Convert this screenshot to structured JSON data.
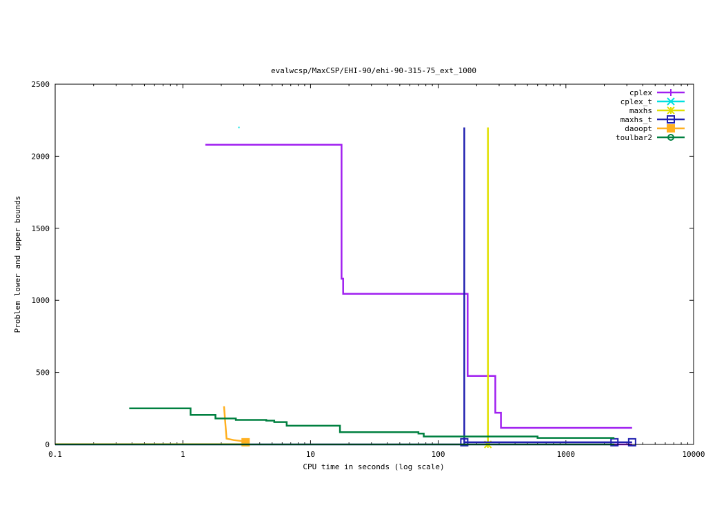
{
  "chart_data": {
    "type": "line",
    "title": "evalwcsp/MaxCSP/EHI-90/ehi-90-315-75_ext_1000",
    "xlabel": "CPU time in seconds (log scale)",
    "ylabel": "Problem lower and upper bounds",
    "xscale": "log",
    "xlim": [
      0.1,
      10000
    ],
    "ylim": [
      0,
      2500
    ],
    "xticks": [
      0.1,
      1,
      10,
      100,
      1000,
      10000
    ],
    "xtick_labels": [
      "0.1",
      "1",
      "10",
      "100",
      "1000",
      "10000"
    ],
    "yticks": [
      0,
      500,
      1000,
      1500,
      2000,
      2500
    ],
    "ytick_labels": [
      "0",
      "500",
      "1000",
      "1500",
      "2000",
      "2500"
    ],
    "grid": false,
    "legend_position": "top-right",
    "series": [
      {
        "name": "cplex",
        "color": "#a020f0",
        "marker": "plus",
        "points": [
          [
            1.5,
            2080
          ],
          [
            17.5,
            2080
          ],
          [
            17.5,
            1150
          ],
          [
            18,
            1150
          ],
          [
            18,
            1045
          ],
          [
            170,
            1045
          ],
          [
            170,
            475
          ],
          [
            280,
            475
          ],
          [
            280,
            220
          ],
          [
            310,
            220
          ],
          [
            310,
            115
          ],
          [
            3300,
            115
          ]
        ],
        "lower": [
          [
            0.1,
            0
          ],
          [
            3300,
            0
          ]
        ],
        "markers": []
      },
      {
        "name": "cplex_t",
        "color": "#00e0e0",
        "marker": "x",
        "points": [
          [
            2.75,
            2200
          ]
        ],
        "lower": [],
        "markers": []
      },
      {
        "name": "maxhs",
        "color": "#e0e000",
        "marker": "star",
        "points": [
          [
            245,
            2200
          ],
          [
            245,
            0
          ]
        ],
        "lower": [],
        "markers": [
          [
            245,
            0
          ]
        ]
      },
      {
        "name": "maxhs_t",
        "color": "#2020b0",
        "marker": "square",
        "points": [
          [
            160,
            2200
          ],
          [
            160,
            0
          ]
        ],
        "lower": [
          [
            160,
            15
          ],
          [
            2400,
            15
          ],
          [
            3300,
            15
          ]
        ],
        "markers": [
          [
            160,
            15
          ],
          [
            2400,
            15
          ],
          [
            3300,
            15
          ]
        ]
      },
      {
        "name": "daoopt",
        "color": "#ffb020",
        "marker": "filled-square",
        "points": [
          [
            2.1,
            265
          ],
          [
            2.15,
            150
          ],
          [
            2.2,
            40
          ],
          [
            2.5,
            30
          ],
          [
            3.1,
            20
          ]
        ],
        "lower": [
          [
            0.1,
            2
          ],
          [
            3.1,
            2
          ]
        ],
        "markers": [
          [
            3.1,
            15
          ]
        ]
      },
      {
        "name": "toulbar2",
        "color": "#008040",
        "marker": "circle",
        "points": [
          [
            0.38,
            250
          ],
          [
            1.15,
            250
          ],
          [
            1.15,
            205
          ],
          [
            1.8,
            205
          ],
          [
            1.8,
            180
          ],
          [
            2.6,
            180
          ],
          [
            2.6,
            170
          ],
          [
            4.5,
            170
          ],
          [
            4.5,
            165
          ],
          [
            5.2,
            165
          ],
          [
            5.2,
            155
          ],
          [
            6.5,
            155
          ],
          [
            6.5,
            130
          ],
          [
            17,
            130
          ],
          [
            17,
            85
          ],
          [
            70,
            85
          ],
          [
            70,
            75
          ],
          [
            77,
            75
          ],
          [
            77,
            55
          ],
          [
            600,
            55
          ],
          [
            600,
            45
          ],
          [
            2400,
            45
          ]
        ],
        "lower": [
          [
            0.1,
            0
          ],
          [
            2400,
            0
          ]
        ],
        "markers": []
      }
    ]
  }
}
